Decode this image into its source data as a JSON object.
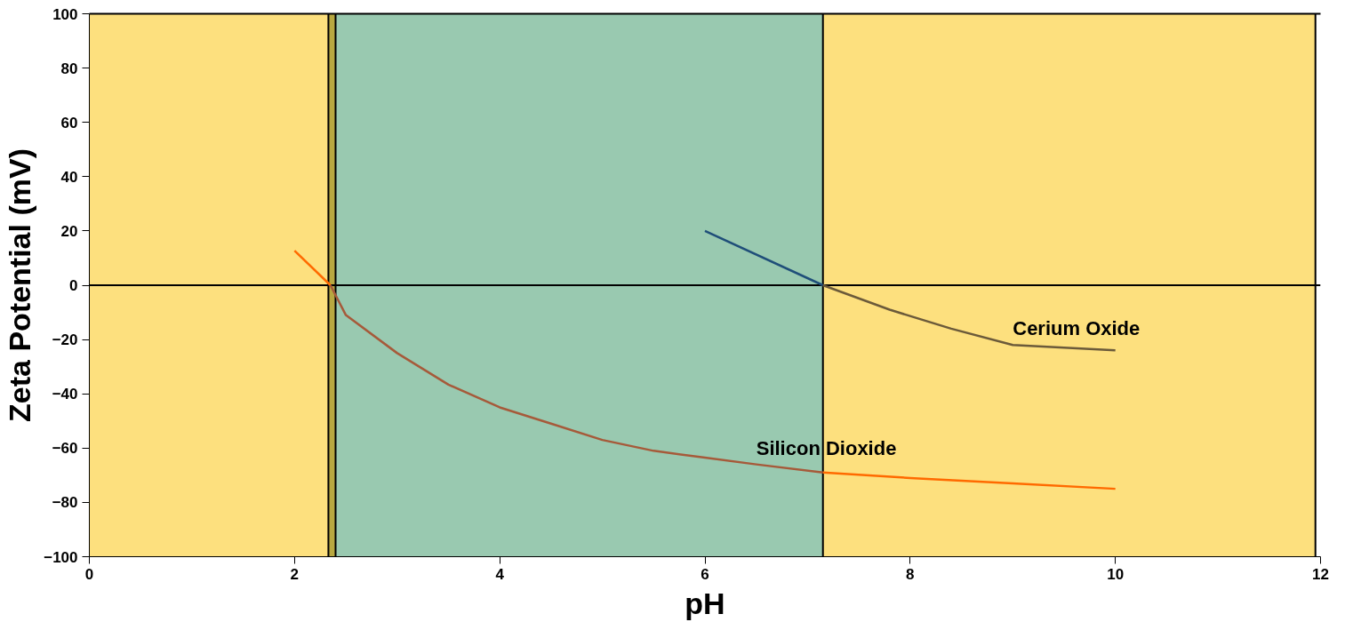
{
  "chart_data": {
    "type": "line",
    "xlabel": "pH",
    "ylabel": "Zeta Potential (mV)",
    "xlim": [
      0,
      12
    ],
    "ylim": [
      -100,
      100
    ],
    "xticks": [
      0,
      2,
      4,
      6,
      8,
      10,
      12
    ],
    "yticks": [
      -100,
      -80,
      -60,
      -40,
      -20,
      0,
      20,
      40,
      60,
      80,
      100
    ],
    "grid": false,
    "marker": "none",
    "line_style": "solid",
    "series": [
      {
        "color": "#ff6a00",
        "x": [
          2.0,
          2.35
        ],
        "values": [
          12.7,
          0
        ]
      },
      {
        "color": "#a65a3a",
        "x": [
          2.35,
          2.5,
          3,
          3.5,
          4,
          4.5,
          5,
          5.5,
          6,
          6.5,
          7.15
        ],
        "values": [
          0,
          -11,
          -25,
          -36.6,
          -45,
          -51,
          -57,
          -61,
          -63.5,
          -66,
          -69
        ]
      },
      {
        "color": "#ff6a00",
        "x": [
          7.15,
          8,
          9,
          10
        ],
        "values": [
          -69,
          -71,
          -73,
          -75
        ]
      },
      {
        "color": "#1f4e79",
        "x": [
          6.0,
          7.15
        ],
        "values": [
          20,
          0
        ]
      },
      {
        "color": "#6b5a3a",
        "x": [
          7.15,
          7.8,
          8.4,
          9.0,
          10.0
        ],
        "values": [
          0,
          -9,
          -16,
          -22,
          -24
        ]
      }
    ],
    "bands": [
      {
        "axis": "x",
        "from": 0,
        "to": 2.33,
        "color": "#fde07e"
      },
      {
        "axis": "x",
        "from": 2.33,
        "to": 2.4,
        "color": "#b8a840"
      },
      {
        "axis": "x",
        "from": 2.4,
        "to": 7.15,
        "color": "#99c9b0"
      },
      {
        "axis": "x",
        "from": 7.15,
        "to": 11.95,
        "color": "#fde07e"
      }
    ],
    "ref_lines": [
      {
        "axis": "x",
        "value": 2.33,
        "color": "#000000"
      },
      {
        "axis": "x",
        "value": 2.4,
        "color": "#000000"
      },
      {
        "axis": "x",
        "value": 7.15,
        "color": "#000000"
      },
      {
        "axis": "x",
        "value": 11.95,
        "color": "#000000"
      },
      {
        "axis": "y",
        "value": 0,
        "color": "#000000"
      }
    ],
    "annotations": [
      {
        "text": "Cerium Oxide",
        "x": 9.0,
        "y": -22
      },
      {
        "text": "Silicon Dioxide",
        "x": 6.5,
        "y": -66
      }
    ]
  }
}
